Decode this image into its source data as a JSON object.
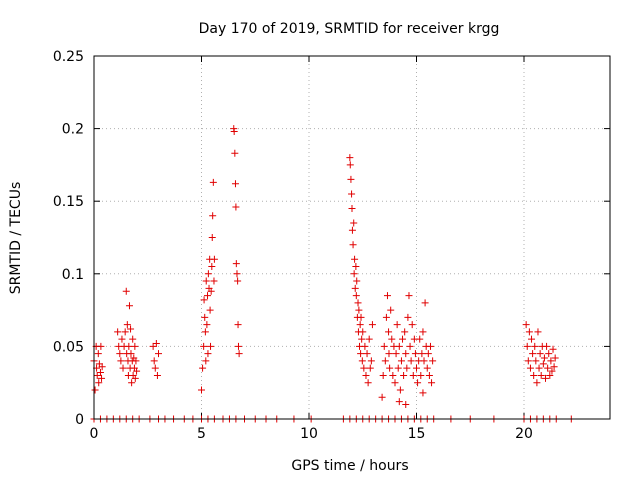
{
  "chart_data": {
    "type": "scatter",
    "title": "Day 170 of 2019, SRMTID for receiver krgg",
    "xlabel": "GPS time / hours",
    "ylabel": "SRMTID / TECUs",
    "xlim": [
      0,
      24
    ],
    "ylim": [
      0,
      0.25
    ],
    "x_ticks": [
      0,
      5,
      10,
      15,
      20
    ],
    "x_tick_labels": [
      "0",
      "5",
      "10",
      "15",
      "20"
    ],
    "y_ticks": [
      0,
      0.05,
      0.1,
      0.15,
      0.2,
      0.25
    ],
    "y_tick_labels": [
      "0",
      "0.05",
      "0.1",
      "0.15",
      "0.2",
      "0.25"
    ],
    "grid": true,
    "marker": "+",
    "color": "#e00000",
    "series": [
      {
        "name": "SRMTID",
        "points": [
          [
            0.0,
            0.04
          ],
          [
            0.05,
            0.02
          ],
          [
            0.1,
            0.05
          ],
          [
            0.12,
            0.035
          ],
          [
            0.15,
            0.03
          ],
          [
            0.2,
            0.045
          ],
          [
            0.22,
            0.025
          ],
          [
            0.25,
            0.038
          ],
          [
            0.3,
            0.032
          ],
          [
            0.32,
            0.05
          ],
          [
            0.35,
            0.028
          ],
          [
            0.38,
            0.036
          ],
          [
            1.1,
            0.06
          ],
          [
            1.15,
            0.05
          ],
          [
            1.2,
            0.045
          ],
          [
            1.25,
            0.04
          ],
          [
            1.3,
            0.055
          ],
          [
            1.35,
            0.035
          ],
          [
            1.4,
            0.05
          ],
          [
            1.45,
            0.06
          ],
          [
            1.5,
            0.088
          ],
          [
            1.52,
            0.045
          ],
          [
            1.55,
            0.065
          ],
          [
            1.58,
            0.04
          ],
          [
            1.6,
            0.03
          ],
          [
            1.62,
            0.05
          ],
          [
            1.65,
            0.078
          ],
          [
            1.68,
            0.035
          ],
          [
            1.7,
            0.062
          ],
          [
            1.72,
            0.045
          ],
          [
            1.75,
            0.025
          ],
          [
            1.78,
            0.04
          ],
          [
            1.8,
            0.055
          ],
          [
            1.82,
            0.03
          ],
          [
            1.85,
            0.042
          ],
          [
            1.88,
            0.035
          ],
          [
            1.9,
            0.05
          ],
          [
            1.92,
            0.028
          ],
          [
            1.95,
            0.04
          ],
          [
            1.98,
            0.033
          ],
          [
            2.75,
            0.05
          ],
          [
            2.8,
            0.04
          ],
          [
            2.85,
            0.035
          ],
          [
            2.9,
            0.052
          ],
          [
            2.95,
            0.03
          ],
          [
            3.0,
            0.045
          ],
          [
            5.0,
            0.02
          ],
          [
            5.05,
            0.035
          ],
          [
            5.1,
            0.05
          ],
          [
            5.12,
            0.082
          ],
          [
            5.15,
            0.07
          ],
          [
            5.18,
            0.06
          ],
          [
            5.2,
            0.04
          ],
          [
            5.22,
            0.095
          ],
          [
            5.25,
            0.065
          ],
          [
            5.28,
            0.085
          ],
          [
            5.3,
            0.045
          ],
          [
            5.32,
            0.1
          ],
          [
            5.35,
            0.09
          ],
          [
            5.38,
            0.11
          ],
          [
            5.4,
            0.075
          ],
          [
            5.42,
            0.05
          ],
          [
            5.45,
            0.088
          ],
          [
            5.48,
            0.105
          ],
          [
            5.5,
            0.125
          ],
          [
            5.52,
            0.14
          ],
          [
            5.55,
            0.163
          ],
          [
            5.58,
            0.095
          ],
          [
            5.6,
            0.11
          ],
          [
            6.5,
            0.2
          ],
          [
            6.52,
            0.198
          ],
          [
            6.55,
            0.183
          ],
          [
            6.58,
            0.162
          ],
          [
            6.6,
            0.146
          ],
          [
            6.62,
            0.107
          ],
          [
            6.65,
            0.1
          ],
          [
            6.68,
            0.095
          ],
          [
            6.7,
            0.065
          ],
          [
            6.72,
            0.05
          ],
          [
            6.75,
            0.045
          ],
          [
            11.9,
            0.18
          ],
          [
            11.92,
            0.175
          ],
          [
            11.95,
            0.165
          ],
          [
            11.98,
            0.155
          ],
          [
            12.0,
            0.145
          ],
          [
            12.02,
            0.13
          ],
          [
            12.05,
            0.12
          ],
          [
            12.08,
            0.135
          ],
          [
            12.1,
            0.1
          ],
          [
            12.12,
            0.11
          ],
          [
            12.15,
            0.09
          ],
          [
            12.18,
            0.105
          ],
          [
            12.2,
            0.085
          ],
          [
            12.22,
            0.095
          ],
          [
            12.25,
            0.07
          ],
          [
            12.28,
            0.08
          ],
          [
            12.3,
            0.06
          ],
          [
            12.32,
            0.075
          ],
          [
            12.35,
            0.05
          ],
          [
            12.38,
            0.065
          ],
          [
            12.4,
            0.045
          ],
          [
            12.42,
            0.07
          ],
          [
            12.45,
            0.055
          ],
          [
            12.48,
            0.04
          ],
          [
            12.5,
            0.06
          ],
          [
            12.55,
            0.035
          ],
          [
            12.6,
            0.05
          ],
          [
            12.65,
            0.03
          ],
          [
            12.7,
            0.045
          ],
          [
            12.75,
            0.025
          ],
          [
            12.8,
            0.055
          ],
          [
            12.85,
            0.035
          ],
          [
            12.9,
            0.04
          ],
          [
            12.95,
            0.065
          ],
          [
            13.4,
            0.015
          ],
          [
            13.45,
            0.03
          ],
          [
            13.5,
            0.05
          ],
          [
            13.55,
            0.04
          ],
          [
            13.6,
            0.07
          ],
          [
            13.65,
            0.085
          ],
          [
            13.7,
            0.06
          ],
          [
            13.72,
            0.045
          ],
          [
            13.75,
            0.035
          ],
          [
            13.8,
            0.075
          ],
          [
            13.85,
            0.055
          ],
          [
            13.9,
            0.03
          ],
          [
            13.95,
            0.05
          ],
          [
            14.0,
            0.025
          ],
          [
            14.05,
            0.045
          ],
          [
            14.1,
            0.065
          ],
          [
            14.15,
            0.035
          ],
          [
            14.2,
            0.05
          ],
          [
            14.25,
            0.02
          ],
          [
            14.3,
            0.04
          ],
          [
            14.35,
            0.055
          ],
          [
            14.4,
            0.03
          ],
          [
            14.45,
            0.06
          ],
          [
            14.5,
            0.045
          ],
          [
            14.55,
            0.035
          ],
          [
            14.6,
            0.07
          ],
          [
            14.65,
            0.085
          ],
          [
            14.7,
            0.05
          ],
          [
            14.75,
            0.04
          ],
          [
            14.8,
            0.065
          ],
          [
            14.85,
            0.03
          ],
          [
            14.9,
            0.055
          ],
          [
            14.95,
            0.045
          ],
          [
            15.0,
            0.035
          ],
          [
            15.05,
            0.025
          ],
          [
            15.1,
            0.04
          ],
          [
            15.15,
            0.055
          ],
          [
            15.2,
            0.03
          ],
          [
            15.25,
            0.045
          ],
          [
            15.3,
            0.06
          ],
          [
            15.35,
            0.04
          ],
          [
            15.4,
            0.08
          ],
          [
            15.45,
            0.05
          ],
          [
            15.5,
            0.035
          ],
          [
            15.55,
            0.045
          ],
          [
            15.6,
            0.03
          ],
          [
            15.65,
            0.05
          ],
          [
            15.7,
            0.025
          ],
          [
            15.75,
            0.04
          ],
          [
            14.2,
            0.012
          ],
          [
            14.5,
            0.01
          ],
          [
            15.3,
            0.018
          ],
          [
            20.1,
            0.065
          ],
          [
            20.15,
            0.05
          ],
          [
            20.2,
            0.04
          ],
          [
            20.25,
            0.06
          ],
          [
            20.3,
            0.035
          ],
          [
            20.35,
            0.055
          ],
          [
            20.4,
            0.045
          ],
          [
            20.45,
            0.03
          ],
          [
            20.5,
            0.05
          ],
          [
            20.55,
            0.04
          ],
          [
            20.6,
            0.025
          ],
          [
            20.65,
            0.06
          ],
          [
            20.7,
            0.035
          ],
          [
            20.75,
            0.045
          ],
          [
            20.8,
            0.03
          ],
          [
            20.85,
            0.05
          ],
          [
            20.9,
            0.038
          ],
          [
            20.95,
            0.042
          ],
          [
            21.0,
            0.028
          ],
          [
            21.05,
            0.05
          ],
          [
            21.1,
            0.035
          ],
          [
            21.15,
            0.045
          ],
          [
            21.2,
            0.03
          ],
          [
            21.25,
            0.04
          ],
          [
            21.3,
            0.033
          ],
          [
            21.35,
            0.048
          ],
          [
            21.4,
            0.036
          ],
          [
            21.45,
            0.042
          ],
          [
            0.0,
            0.0
          ],
          [
            0.3,
            0.0
          ],
          [
            0.6,
            0.0
          ],
          [
            0.9,
            0.0
          ],
          [
            1.2,
            0.0
          ],
          [
            1.5,
            0.0
          ],
          [
            1.8,
            0.0
          ],
          [
            2.1,
            0.0
          ],
          [
            2.6,
            0.0
          ],
          [
            3.0,
            0.0
          ],
          [
            3.3,
            0.0
          ],
          [
            3.7,
            0.0
          ],
          [
            4.2,
            0.0
          ],
          [
            4.6,
            0.0
          ],
          [
            5.0,
            0.0
          ],
          [
            5.3,
            0.0
          ],
          [
            5.6,
            0.0
          ],
          [
            6.0,
            0.0
          ],
          [
            6.3,
            0.0
          ],
          [
            6.6,
            0.0
          ],
          [
            7.0,
            0.0
          ],
          [
            7.5,
            0.0
          ],
          [
            8.0,
            0.0
          ],
          [
            8.5,
            0.0
          ],
          [
            9.3,
            0.0
          ],
          [
            10.1,
            0.0
          ],
          [
            11.6,
            0.0
          ],
          [
            11.9,
            0.0
          ],
          [
            12.2,
            0.0
          ],
          [
            12.5,
            0.0
          ],
          [
            12.8,
            0.0
          ],
          [
            13.1,
            0.0
          ],
          [
            13.4,
            0.0
          ],
          [
            13.7,
            0.0
          ],
          [
            14.0,
            0.0
          ],
          [
            14.3,
            0.0
          ],
          [
            14.6,
            0.0
          ],
          [
            14.9,
            0.0
          ],
          [
            15.2,
            0.0
          ],
          [
            15.5,
            0.0
          ],
          [
            15.8,
            0.0
          ],
          [
            16.6,
            0.0
          ],
          [
            17.5,
            0.0
          ],
          [
            18.6,
            0.0
          ],
          [
            20.0,
            0.0
          ],
          [
            20.3,
            0.0
          ],
          [
            20.6,
            0.0
          ],
          [
            20.9,
            0.0
          ],
          [
            21.2,
            0.0
          ],
          [
            21.5,
            0.0
          ],
          [
            22.2,
            0.0
          ]
        ]
      }
    ]
  }
}
